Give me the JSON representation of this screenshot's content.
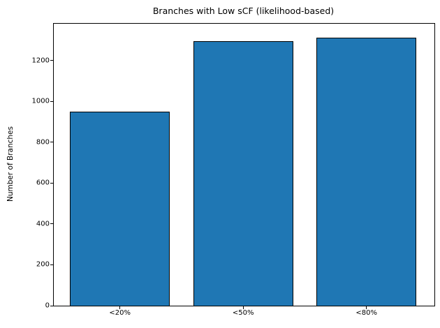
{
  "chart_data": {
    "type": "bar",
    "title": "Branches with Low sCF (likelihood-based)",
    "xlabel": "",
    "ylabel": "Number of Branches",
    "categories": [
      "<20%",
      "<50%",
      "<80%"
    ],
    "values": [
      950,
      1296,
      1312
    ],
    "yticks": [
      0,
      200,
      400,
      600,
      800,
      1000,
      1200
    ],
    "ylim": [
      0,
      1380
    ],
    "grid": false,
    "legend_position": "none",
    "bar_color": "#1f77b4",
    "bar_edge_color": "#000000",
    "background_color": "#ffffff",
    "text_color": "#000000"
  }
}
